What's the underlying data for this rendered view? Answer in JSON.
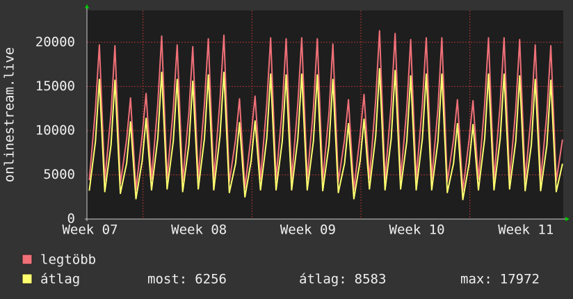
{
  "chart_data": {
    "type": "line",
    "ylabel": "onlinestream.live",
    "xlim": [
      0,
      30.6
    ],
    "xticks": [
      {
        "value": 0.2,
        "label": "Week 07"
      },
      {
        "value": 7.2,
        "label": "Week 08"
      },
      {
        "value": 14.2,
        "label": "Week 09"
      },
      {
        "value": 21.2,
        "label": "Week 10"
      },
      {
        "value": 28.2,
        "label": "Week 11"
      }
    ],
    "xgrid": [
      3.6,
      10.6,
      17.6,
      24.6
    ],
    "ylim": [
      0,
      23600
    ],
    "yticks": [
      0,
      5000,
      10000,
      15000,
      20000
    ],
    "grid": true,
    "x": [
      0.15,
      0.55,
      0.8,
      1.15,
      1.55,
      1.8,
      2.15,
      2.55,
      2.8,
      3.15,
      3.55,
      3.8,
      4.15,
      4.55,
      4.8,
      5.15,
      5.55,
      5.8,
      6.15,
      6.55,
      6.8,
      7.15,
      7.55,
      7.8,
      8.15,
      8.55,
      8.8,
      9.15,
      9.55,
      9.8,
      10.15,
      10.55,
      10.8,
      11.15,
      11.55,
      11.8,
      12.15,
      12.55,
      12.8,
      13.15,
      13.55,
      13.8,
      14.15,
      14.55,
      14.8,
      15.15,
      15.55,
      15.8,
      16.15,
      16.55,
      16.8,
      17.15,
      17.55,
      17.8,
      18.15,
      18.55,
      18.8,
      19.15,
      19.55,
      19.8,
      20.15,
      20.55,
      20.8,
      21.15,
      21.55,
      21.8,
      22.15,
      22.55,
      22.8,
      23.15,
      23.55,
      23.8,
      24.15,
      24.55,
      24.8,
      25.15,
      25.55,
      25.8,
      26.15,
      26.55,
      26.8,
      27.15,
      27.55,
      27.8,
      28.15,
      28.55,
      28.8,
      29.15,
      29.55,
      29.8,
      30.15,
      30.55
    ],
    "series": [
      {
        "name": "legtöbb",
        "color": "#f07078",
        "values": [
          4400,
          12500,
          19700,
          4300,
          12000,
          19600,
          4000,
          9000,
          13700,
          3300,
          9500,
          14200,
          4500,
          13000,
          20700,
          4600,
          12500,
          19700,
          4300,
          12000,
          19500,
          4600,
          13000,
          20400,
          4500,
          13500,
          20800,
          4200,
          9000,
          13600,
          3500,
          9500,
          13900,
          4500,
          13000,
          20500,
          4500,
          12500,
          20400,
          4500,
          13000,
          20500,
          4500,
          12500,
          20400,
          4400,
          12000,
          19800,
          4200,
          9000,
          13500,
          3300,
          9500,
          14100,
          4600,
          13500,
          21300,
          4500,
          13000,
          21000,
          4600,
          12500,
          20300,
          4500,
          13000,
          20500,
          4500,
          12500,
          20500,
          4200,
          9000,
          13500,
          3200,
          9000,
          13400,
          4500,
          13000,
          20500,
          4500,
          13000,
          20500,
          4600,
          12500,
          20300,
          4400,
          12000,
          19700,
          4400,
          12000,
          19600,
          4300,
          9000
        ]
      },
      {
        "name": "átlag",
        "color": "#ffff70",
        "values": [
          3200,
          8800,
          15800,
          3100,
          8400,
          15700,
          2900,
          6300,
          11000,
          2300,
          6600,
          11400,
          3300,
          9100,
          16600,
          3400,
          8800,
          15800,
          3100,
          8400,
          15600,
          3400,
          9100,
          16300,
          3300,
          9400,
          16600,
          3000,
          6300,
          10900,
          2500,
          6600,
          11100,
          3300,
          9100,
          16400,
          3300,
          8800,
          16300,
          3300,
          9100,
          16400,
          3300,
          8800,
          16300,
          3200,
          8400,
          15800,
          3000,
          6300,
          10800,
          2300,
          6600,
          11300,
          3400,
          9400,
          17000,
          3300,
          9100,
          16800,
          3400,
          8800,
          16200,
          3300,
          9100,
          16400,
          3300,
          8800,
          16400,
          3000,
          6300,
          10800,
          2200,
          6300,
          10700,
          3300,
          9100,
          16400,
          3300,
          9100,
          16400,
          3400,
          8800,
          16200,
          3200,
          8400,
          15800,
          3200,
          8400,
          15700,
          3100,
          6256
        ]
      }
    ],
    "stats": [
      {
        "label": "most:",
        "value": 6256
      },
      {
        "label": "átlag:",
        "value": 8583
      },
      {
        "label": "max:",
        "value": 17972
      }
    ]
  }
}
